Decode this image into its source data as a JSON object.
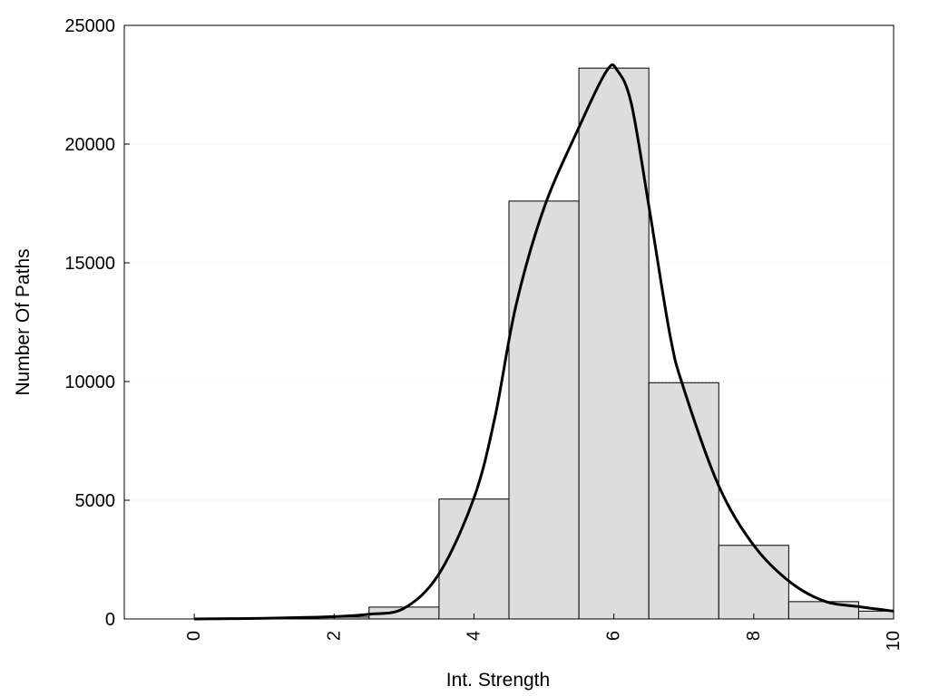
{
  "chart_data": {
    "type": "bar",
    "title": "",
    "xlabel": "Int. Strength",
    "ylabel": "Number Of Paths",
    "xlim": [
      -1,
      10
    ],
    "ylim": [
      0,
      25000
    ],
    "x_ticks": [
      "0",
      "2",
      "4",
      "6",
      "8",
      "10"
    ],
    "y_ticks": [
      "0",
      "5000",
      "10000",
      "15000",
      "20000",
      "25000"
    ],
    "grid": "horizontal dotted",
    "legend": "none",
    "bin_width": 1,
    "bins": [
      {
        "x": 0,
        "value": 0
      },
      {
        "x": 1,
        "value": 20
      },
      {
        "x": 2,
        "value": 80
      },
      {
        "x": 3,
        "value": 500
      },
      {
        "x": 4,
        "value": 5050
      },
      {
        "x": 5,
        "value": 17600
      },
      {
        "x": 6,
        "value": 23200
      },
      {
        "x": 7,
        "value": 9950
      },
      {
        "x": 8,
        "value": 3100
      },
      {
        "x": 9,
        "value": 730
      },
      {
        "x": 10,
        "value": 330
      }
    ],
    "density_curve": [
      [
        0,
        0
      ],
      [
        1,
        30
      ],
      [
        2,
        100
      ],
      [
        2.5,
        200
      ],
      [
        3,
        450
      ],
      [
        3.5,
        1900
      ],
      [
        4,
        5100
      ],
      [
        4.3,
        8500
      ],
      [
        4.6,
        13200
      ],
      [
        5,
        17300
      ],
      [
        5.5,
        20700
      ],
      [
        5.9,
        23100
      ],
      [
        6.05,
        23100
      ],
      [
        6.25,
        21700
      ],
      [
        6.5,
        17400
      ],
      [
        6.8,
        12000
      ],
      [
        7,
        9700
      ],
      [
        7.5,
        5600
      ],
      [
        8,
        3100
      ],
      [
        8.5,
        1600
      ],
      [
        9,
        760
      ],
      [
        9.5,
        520
      ],
      [
        10,
        330
      ]
    ],
    "colors": {
      "bar_fill": "#dddddd",
      "bar_stroke": "#000000",
      "curve": "#000000",
      "grid": "#cccccc"
    }
  }
}
